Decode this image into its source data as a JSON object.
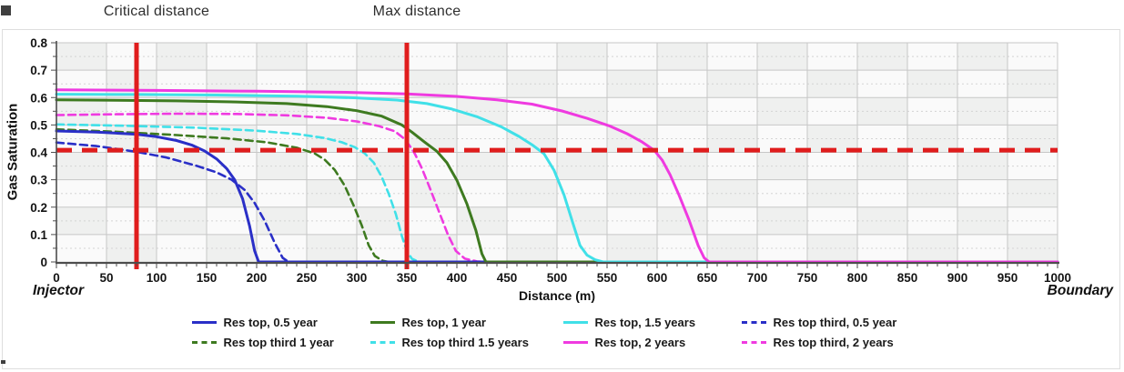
{
  "figure": {
    "annotations": {
      "critical": "Critical distance",
      "max": "Max distance"
    },
    "left_label": "Injector",
    "right_label": "Boundary"
  },
  "chart_data": {
    "type": "line",
    "title": "",
    "xlabel": "Distance (m)",
    "ylabel": "Gas Saturation",
    "xlim": [
      0,
      1000
    ],
    "ylim": [
      0,
      0.8
    ],
    "x_ticks": [
      0,
      50,
      100,
      150,
      200,
      250,
      300,
      350,
      400,
      450,
      500,
      550,
      600,
      650,
      700,
      750,
      800,
      850,
      900,
      950,
      1000
    ],
    "y_ticks": [
      0,
      0.1,
      0.2,
      0.3,
      0.4,
      0.5,
      0.6,
      0.7,
      0.8
    ],
    "y_tick_labels": [
      "0",
      "0.1",
      "0.2",
      "0.3",
      "0.4",
      "0.5",
      "0.6",
      "0.7",
      "0.8"
    ],
    "grid": true,
    "legend_position": "bottom",
    "reference_lines": {
      "critical_distance_m": 80,
      "max_distance_m": 350,
      "critical_saturation": 0.408,
      "color": "#e01d1d"
    },
    "series": [
      {
        "name": "Res top, 0.5 year",
        "color": "#2a2fc7",
        "dash": false,
        "points": [
          [
            0,
            0.478
          ],
          [
            40,
            0.474
          ],
          [
            80,
            0.466
          ],
          [
            100,
            0.457
          ],
          [
            120,
            0.443
          ],
          [
            135,
            0.427
          ],
          [
            148,
            0.405
          ],
          [
            160,
            0.376
          ],
          [
            170,
            0.341
          ],
          [
            178,
            0.3
          ],
          [
            186,
            0.23
          ],
          [
            193,
            0.13
          ],
          [
            198,
            0.04
          ],
          [
            202,
            0
          ],
          [
            1000,
            0
          ]
        ]
      },
      {
        "name": "Res top, 1 year",
        "color": "#3e7a20",
        "dash": false,
        "points": [
          [
            0,
            0.592
          ],
          [
            60,
            0.59
          ],
          [
            120,
            0.588
          ],
          [
            180,
            0.584
          ],
          [
            230,
            0.578
          ],
          [
            270,
            0.567
          ],
          [
            300,
            0.552
          ],
          [
            325,
            0.532
          ],
          [
            345,
            0.5
          ],
          [
            355,
            0.474
          ],
          [
            368,
            0.437
          ],
          [
            380,
            0.404
          ],
          [
            390,
            0.362
          ],
          [
            400,
            0.298
          ],
          [
            410,
            0.212
          ],
          [
            419,
            0.115
          ],
          [
            425,
            0.03
          ],
          [
            429,
            0
          ],
          [
            1000,
            0
          ]
        ]
      },
      {
        "name": "Res top, 1.5 years",
        "color": "#40e0e8",
        "dash": false,
        "points": [
          [
            0,
            0.612
          ],
          [
            80,
            0.611
          ],
          [
            160,
            0.609
          ],
          [
            240,
            0.605
          ],
          [
            300,
            0.599
          ],
          [
            340,
            0.591
          ],
          [
            370,
            0.578
          ],
          [
            395,
            0.558
          ],
          [
            420,
            0.53
          ],
          [
            445,
            0.492
          ],
          [
            462,
            0.458
          ],
          [
            475,
            0.428
          ],
          [
            487,
            0.395
          ],
          [
            497,
            0.335
          ],
          [
            507,
            0.245
          ],
          [
            516,
            0.14
          ],
          [
            523,
            0.06
          ],
          [
            530,
            0.025
          ],
          [
            538,
            0.008
          ],
          [
            546,
            0
          ],
          [
            1000,
            0
          ]
        ]
      },
      {
        "name": "Res top third, 0.5 year",
        "color": "#2a2fc7",
        "dash": true,
        "points": [
          [
            0,
            0.436
          ],
          [
            40,
            0.423
          ],
          [
            80,
            0.402
          ],
          [
            110,
            0.381
          ],
          [
            140,
            0.351
          ],
          [
            160,
            0.327
          ],
          [
            175,
            0.3
          ],
          [
            188,
            0.263
          ],
          [
            198,
            0.215
          ],
          [
            208,
            0.15
          ],
          [
            218,
            0.07
          ],
          [
            226,
            0.015
          ],
          [
            232,
            0
          ],
          [
            1000,
            0
          ]
        ]
      },
      {
        "name": "Res top third 1 year",
        "color": "#3e7a20",
        "dash": true,
        "points": [
          [
            0,
            0.484
          ],
          [
            60,
            0.475
          ],
          [
            120,
            0.463
          ],
          [
            170,
            0.451
          ],
          [
            210,
            0.437
          ],
          [
            240,
            0.417
          ],
          [
            258,
            0.396
          ],
          [
            268,
            0.373
          ],
          [
            278,
            0.336
          ],
          [
            288,
            0.278
          ],
          [
            297,
            0.205
          ],
          [
            305,
            0.133
          ],
          [
            312,
            0.06
          ],
          [
            318,
            0.022
          ],
          [
            326,
            0.004
          ],
          [
            332,
            0
          ],
          [
            1000,
            0
          ]
        ]
      },
      {
        "name": "Res top third 1.5 years",
        "color": "#40e0e8",
        "dash": true,
        "points": [
          [
            0,
            0.502
          ],
          [
            70,
            0.497
          ],
          [
            140,
            0.49
          ],
          [
            200,
            0.479
          ],
          [
            240,
            0.467
          ],
          [
            268,
            0.452
          ],
          [
            285,
            0.437
          ],
          [
            298,
            0.419
          ],
          [
            308,
            0.396
          ],
          [
            317,
            0.362
          ],
          [
            325,
            0.31
          ],
          [
            332,
            0.248
          ],
          [
            339,
            0.175
          ],
          [
            345,
            0.095
          ],
          [
            350,
            0.04
          ],
          [
            355,
            0.012
          ],
          [
            362,
            0
          ],
          [
            1000,
            0
          ]
        ]
      },
      {
        "name": "Res top, 2 years",
        "color": "#ef3ae0",
        "dash": false,
        "points": [
          [
            0,
            0.628
          ],
          [
            100,
            0.626
          ],
          [
            200,
            0.623
          ],
          [
            290,
            0.619
          ],
          [
            350,
            0.613
          ],
          [
            400,
            0.604
          ],
          [
            440,
            0.592
          ],
          [
            475,
            0.576
          ],
          [
            505,
            0.551
          ],
          [
            530,
            0.524
          ],
          [
            552,
            0.497
          ],
          [
            570,
            0.468
          ],
          [
            585,
            0.438
          ],
          [
            597,
            0.408
          ],
          [
            605,
            0.372
          ],
          [
            613,
            0.318
          ],
          [
            622,
            0.243
          ],
          [
            632,
            0.152
          ],
          [
            641,
            0.06
          ],
          [
            647,
            0.015
          ],
          [
            652,
            0
          ],
          [
            1000,
            0
          ]
        ]
      },
      {
        "name": "Res top third, 2 years",
        "color": "#ef3ae0",
        "dash": true,
        "points": [
          [
            0,
            0.536
          ],
          [
            60,
            0.539
          ],
          [
            120,
            0.541
          ],
          [
            180,
            0.54
          ],
          [
            230,
            0.535
          ],
          [
            270,
            0.526
          ],
          [
            300,
            0.513
          ],
          [
            322,
            0.496
          ],
          [
            338,
            0.477
          ],
          [
            348,
            0.448
          ],
          [
            354,
            0.418
          ],
          [
            358,
            0.395
          ],
          [
            365,
            0.342
          ],
          [
            373,
            0.27
          ],
          [
            382,
            0.185
          ],
          [
            391,
            0.1
          ],
          [
            399,
            0.04
          ],
          [
            408,
            0.012
          ],
          [
            420,
            0.002
          ],
          [
            428,
            0
          ],
          [
            1000,
            0
          ]
        ]
      }
    ],
    "legend_rows": [
      [
        0,
        1,
        2,
        3
      ],
      [
        4,
        5,
        6,
        7
      ]
    ]
  }
}
